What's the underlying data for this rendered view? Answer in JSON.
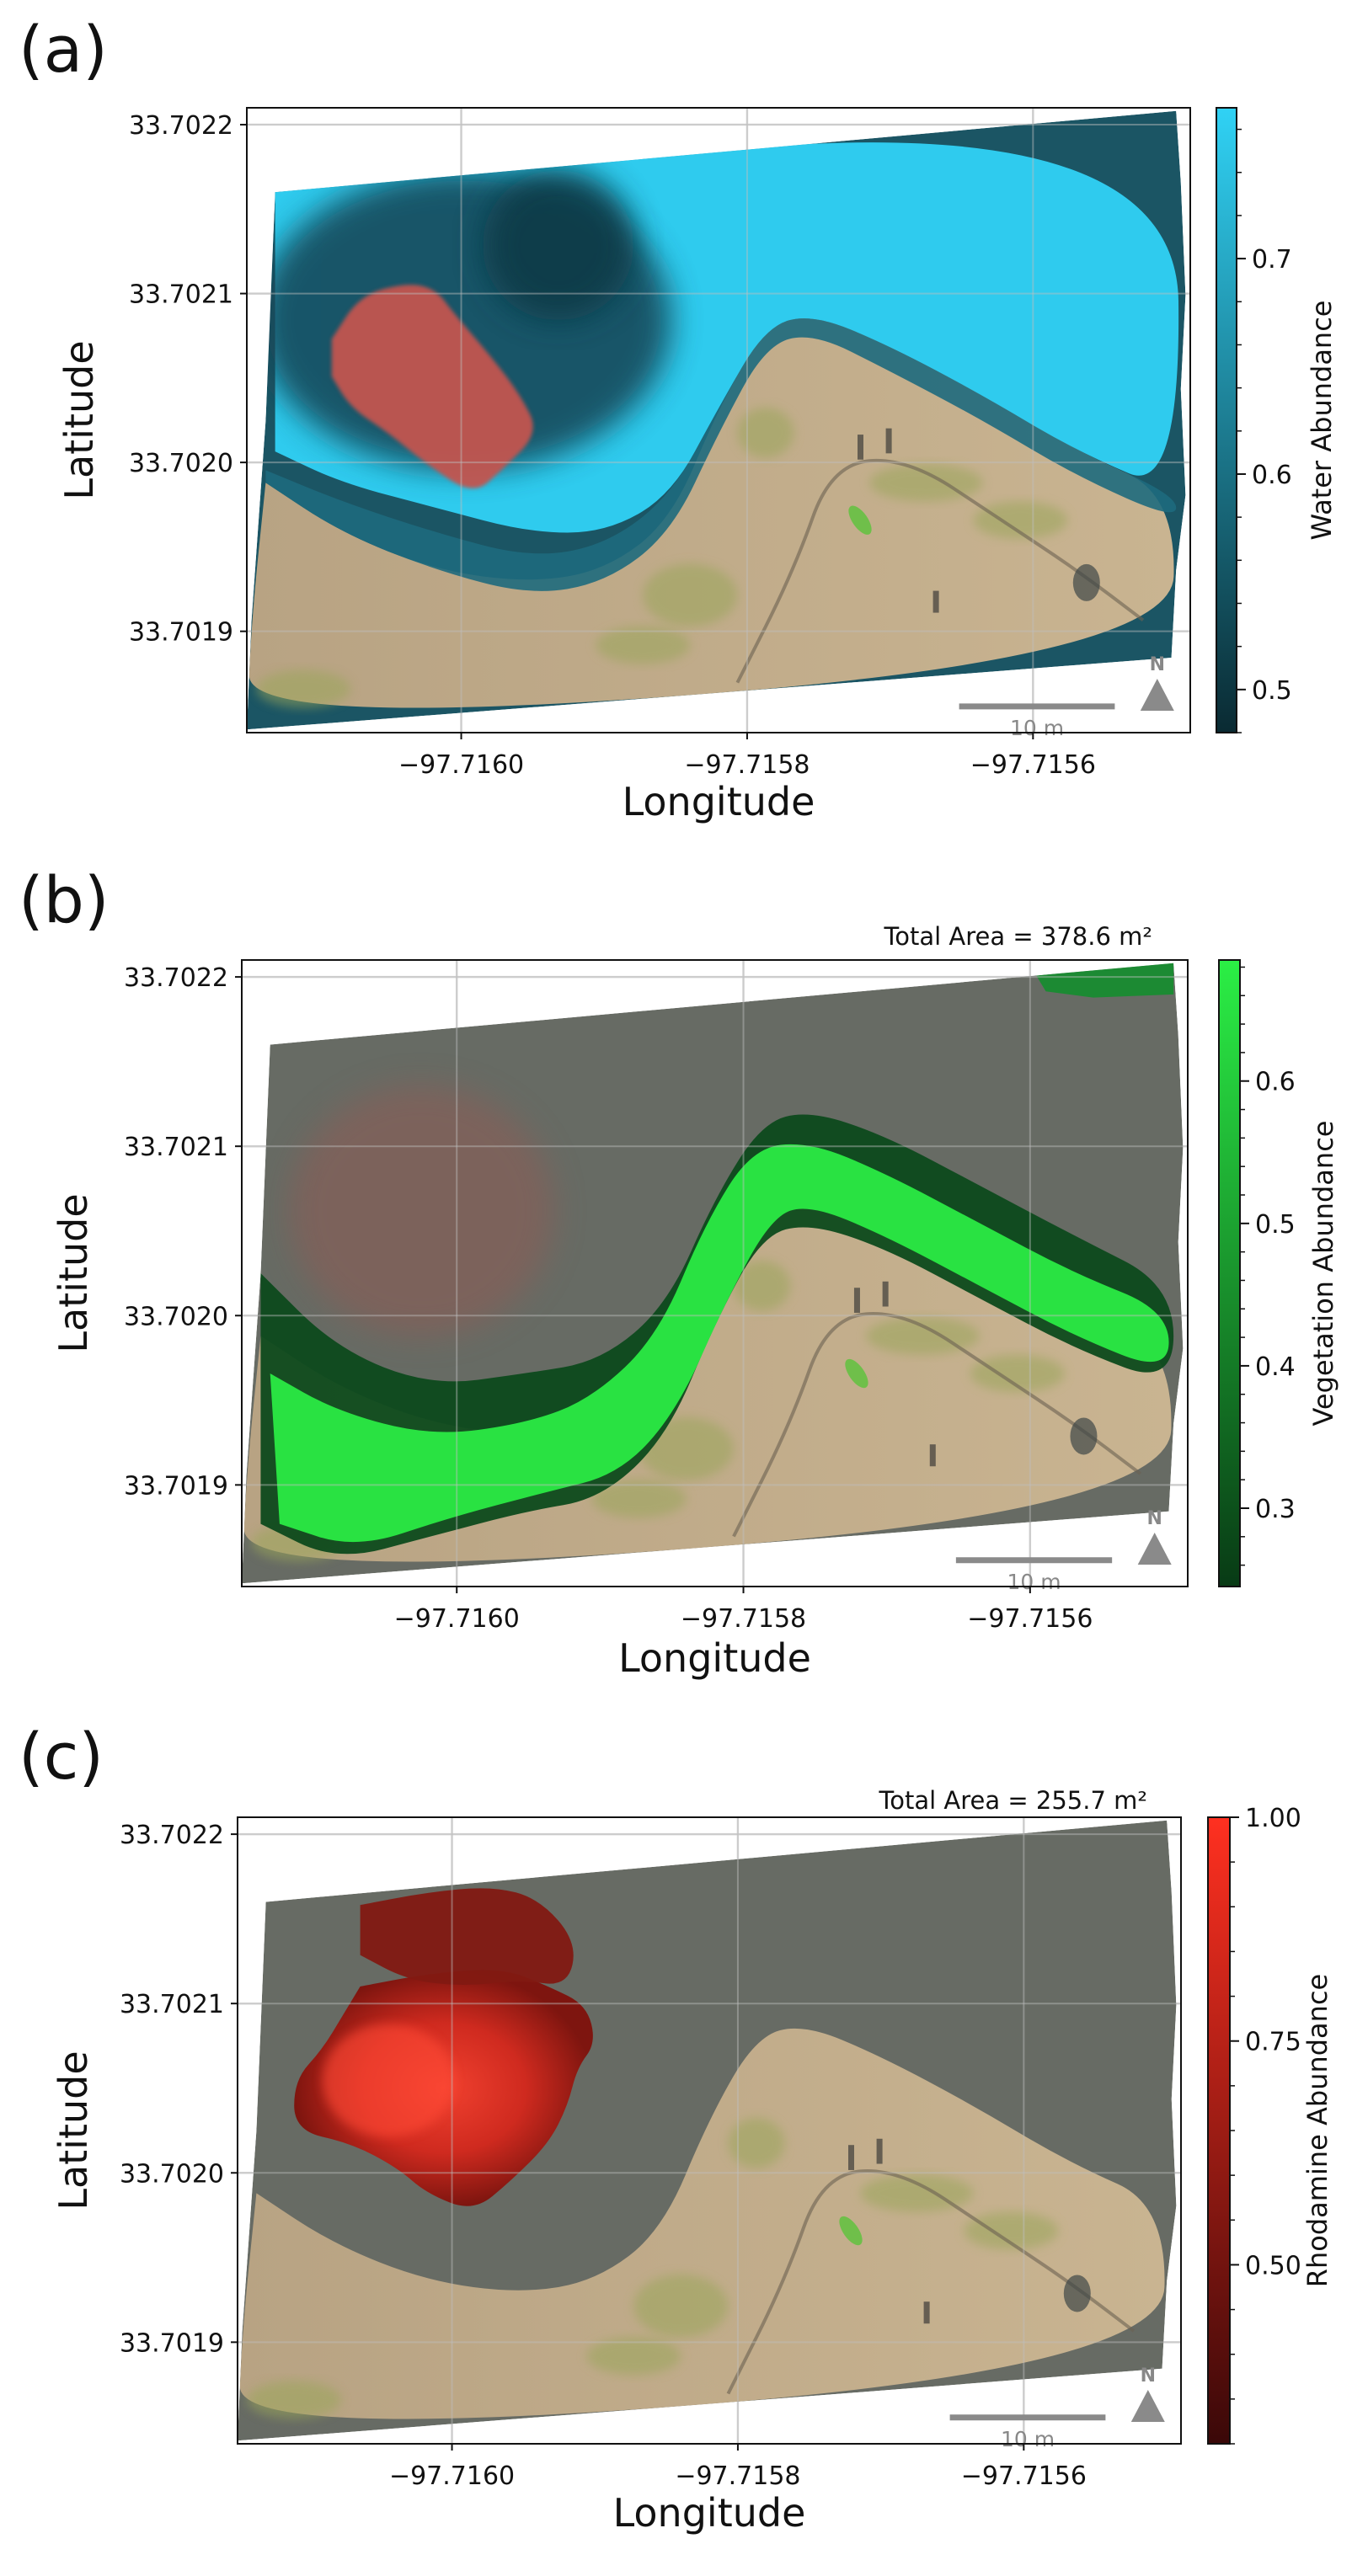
{
  "colors": {
    "water_low": "#0a2a32",
    "water_high": "#30d2f5",
    "veg_low": "#083a15",
    "veg_high": "#2bef45",
    "rhod_low": "#3a0808",
    "rhod_high": "#ff3020",
    "background_gray": "#676b64",
    "sand": "#c9b491",
    "scale_gray": "#8a8a8a"
  },
  "chart_data": [
    {
      "type": "heatmap",
      "panel_label": "(a)",
      "xlabel": "Longitude",
      "ylabel": "Latitude",
      "xlim": [
        -97.71615,
        -97.71549
      ],
      "ylim": [
        33.70184,
        33.70221
      ],
      "x_ticks": [
        -97.716,
        -97.7158,
        -97.7156
      ],
      "x_tick_labels": [
        "−97.7160",
        "−97.7158",
        "−97.7156"
      ],
      "y_ticks": [
        33.7019,
        33.702,
        33.7021,
        33.7022
      ],
      "y_tick_labels": [
        "33.7019",
        "33.7020",
        "33.7021",
        "33.7022"
      ],
      "colorbar": {
        "label": "Water Abundance",
        "range": [
          0.48,
          0.77
        ],
        "ticks": [
          0.5,
          0.6,
          0.7
        ],
        "tick_labels": [
          "0.5",
          "0.6",
          "0.7"
        ],
        "colors": [
          "#0a2a32",
          "#30d2f5"
        ]
      },
      "annotation": "",
      "scale_bar": "10 m",
      "north_label": "N",
      "grid": true
    },
    {
      "type": "heatmap",
      "panel_label": "(b)",
      "xlabel": "Longitude",
      "ylabel": "Latitude",
      "xlim": [
        -97.71615,
        -97.71549
      ],
      "ylim": [
        33.70184,
        33.70221
      ],
      "x_ticks": [
        -97.716,
        -97.7158,
        -97.7156
      ],
      "x_tick_labels": [
        "−97.7160",
        "−97.7158",
        "−97.7156"
      ],
      "y_ticks": [
        33.7019,
        33.702,
        33.7021,
        33.7022
      ],
      "y_tick_labels": [
        "33.7019",
        "33.7020",
        "33.7021",
        "33.7022"
      ],
      "colorbar": {
        "label": "Vegetation Abundance",
        "range": [
          0.245,
          0.685
        ],
        "ticks": [
          0.3,
          0.4,
          0.5,
          0.6
        ],
        "tick_labels": [
          "0.3",
          "0.4",
          "0.5",
          "0.6"
        ],
        "colors": [
          "#083a15",
          "#2bef45"
        ]
      },
      "annotation": "Total Area = 378.6 m²",
      "scale_bar": "10 m",
      "north_label": "N",
      "grid": true
    },
    {
      "type": "heatmap",
      "panel_label": "(c)",
      "xlabel": "Longitude",
      "ylabel": "Latitude",
      "xlim": [
        -97.71615,
        -97.71549
      ],
      "ylim": [
        33.70184,
        33.70221
      ],
      "x_ticks": [
        -97.716,
        -97.7158,
        -97.7156
      ],
      "x_tick_labels": [
        "−97.7160",
        "−97.7158",
        "−97.7156"
      ],
      "y_ticks": [
        33.7019,
        33.702,
        33.7021,
        33.7022
      ],
      "y_tick_labels": [
        "33.7019",
        "33.7020",
        "33.7021",
        "33.7022"
      ],
      "colorbar": {
        "label": "Rhodamine Abundance",
        "range": [
          0.3,
          1.0
        ],
        "ticks": [
          0.5,
          0.75,
          1.0
        ],
        "tick_labels": [
          "0.50",
          "0.75",
          "1.00"
        ],
        "colors": [
          "#3a0808",
          "#ff3020"
        ]
      },
      "annotation": "Total Area = 255.7 m²",
      "scale_bar": "10 m",
      "north_label": "N",
      "grid": true
    }
  ]
}
